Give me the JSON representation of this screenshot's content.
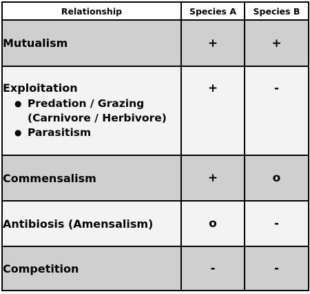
{
  "table": {
    "headers": {
      "relationship": "Relationship",
      "species_a": "Species A",
      "species_b": "Species B"
    },
    "rows": [
      {
        "name": "Mutualism",
        "species_a": "+",
        "species_b": "+"
      },
      {
        "name": "Exploitation",
        "species_a": "+",
        "species_b": "-",
        "subitems": [
          {
            "line1": "Predation / Grazing",
            "line2": "(Carnivore / Herbivore)"
          },
          {
            "line1": "Parasitism"
          }
        ]
      },
      {
        "name": "Commensalism",
        "species_a": "+",
        "species_b": "o"
      },
      {
        "name": "Antibiosis (Amensalism)",
        "species_a": "o",
        "species_b": "-"
      },
      {
        "name": "Competition",
        "species_a": "-",
        "species_b": "-"
      }
    ],
    "colors": {
      "shaded_row": "#cfcfcf",
      "light_row": "#f3f3f3",
      "border": "#000000"
    }
  }
}
